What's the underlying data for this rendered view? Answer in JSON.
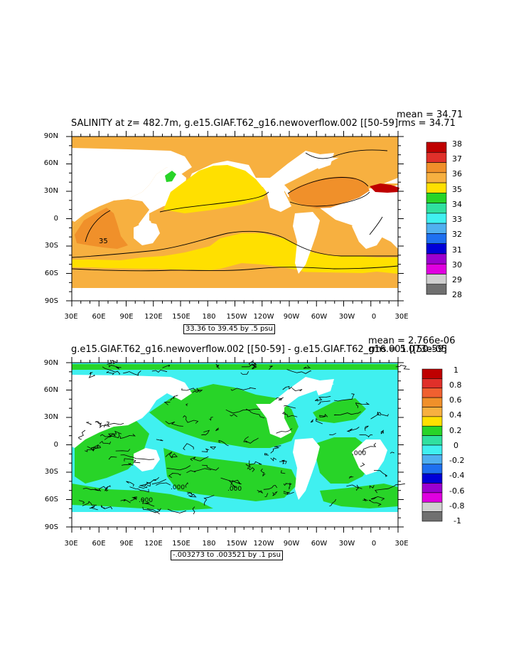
{
  "panels": [
    {
      "title": "SALINITY at z= 482.7m, g.e15.GIAF.T62_g16.newoverflow.002 [[50-59]",
      "mean": "mean = 34.71",
      "rms": "rms = 34.71",
      "range": "33.36 to 39.45 by .5 psu",
      "contour_label": "35",
      "colorbar": {
        "labels": [
          "38",
          "37",
          "36",
          "35",
          "34",
          "33",
          "32",
          "31",
          "30",
          "29",
          "28"
        ],
        "colors": [
          "#bf0000",
          "#e0302a",
          "#f0902a",
          "#f7b040",
          "#ffe000",
          "#28d428",
          "#30e0a0",
          "#40f0f0",
          "#50b0f0",
          "#1e70f0",
          "#0000d8",
          "#9c00d0",
          "#e000e0",
          "#d0d0d0",
          "#707070"
        ]
      }
    },
    {
      "title": "g.e15.GIAF.T62_g16.newoverflow.002 [[50-59] - g.e15.GIAF.T62_g16.001 [[50-59]",
      "mean": "mean = 2.766e-06",
      "rms": "rms = 5.073e-05",
      "range": "-.003273 to .003521 by .1 psu",
      "contour_label": ".000",
      "colorbar": {
        "labels": [
          "1",
          "0.8",
          "0.6",
          "0.4",
          "0.2",
          "0",
          "-0.2",
          "-0.4",
          "-0.6",
          "-0.8",
          "-1"
        ],
        "colors": [
          "#bf0000",
          "#e0302a",
          "#f06030",
          "#f0902a",
          "#f7b040",
          "#ffe000",
          "#28d428",
          "#30e0a0",
          "#40f0f0",
          "#50b0f0",
          "#1e70f0",
          "#0000d8",
          "#9c00d0",
          "#e000e0",
          "#d0d0d0",
          "#707070"
        ]
      }
    }
  ],
  "lat_labels": [
    "90N",
    "60N",
    "30N",
    "0",
    "30S",
    "60S",
    "90S"
  ],
  "lon_labels": [
    "30E",
    "60E",
    "90E",
    "120E",
    "150E",
    "180",
    "150W",
    "120W",
    "90W",
    "60W",
    "30W",
    "0",
    "30E"
  ]
}
